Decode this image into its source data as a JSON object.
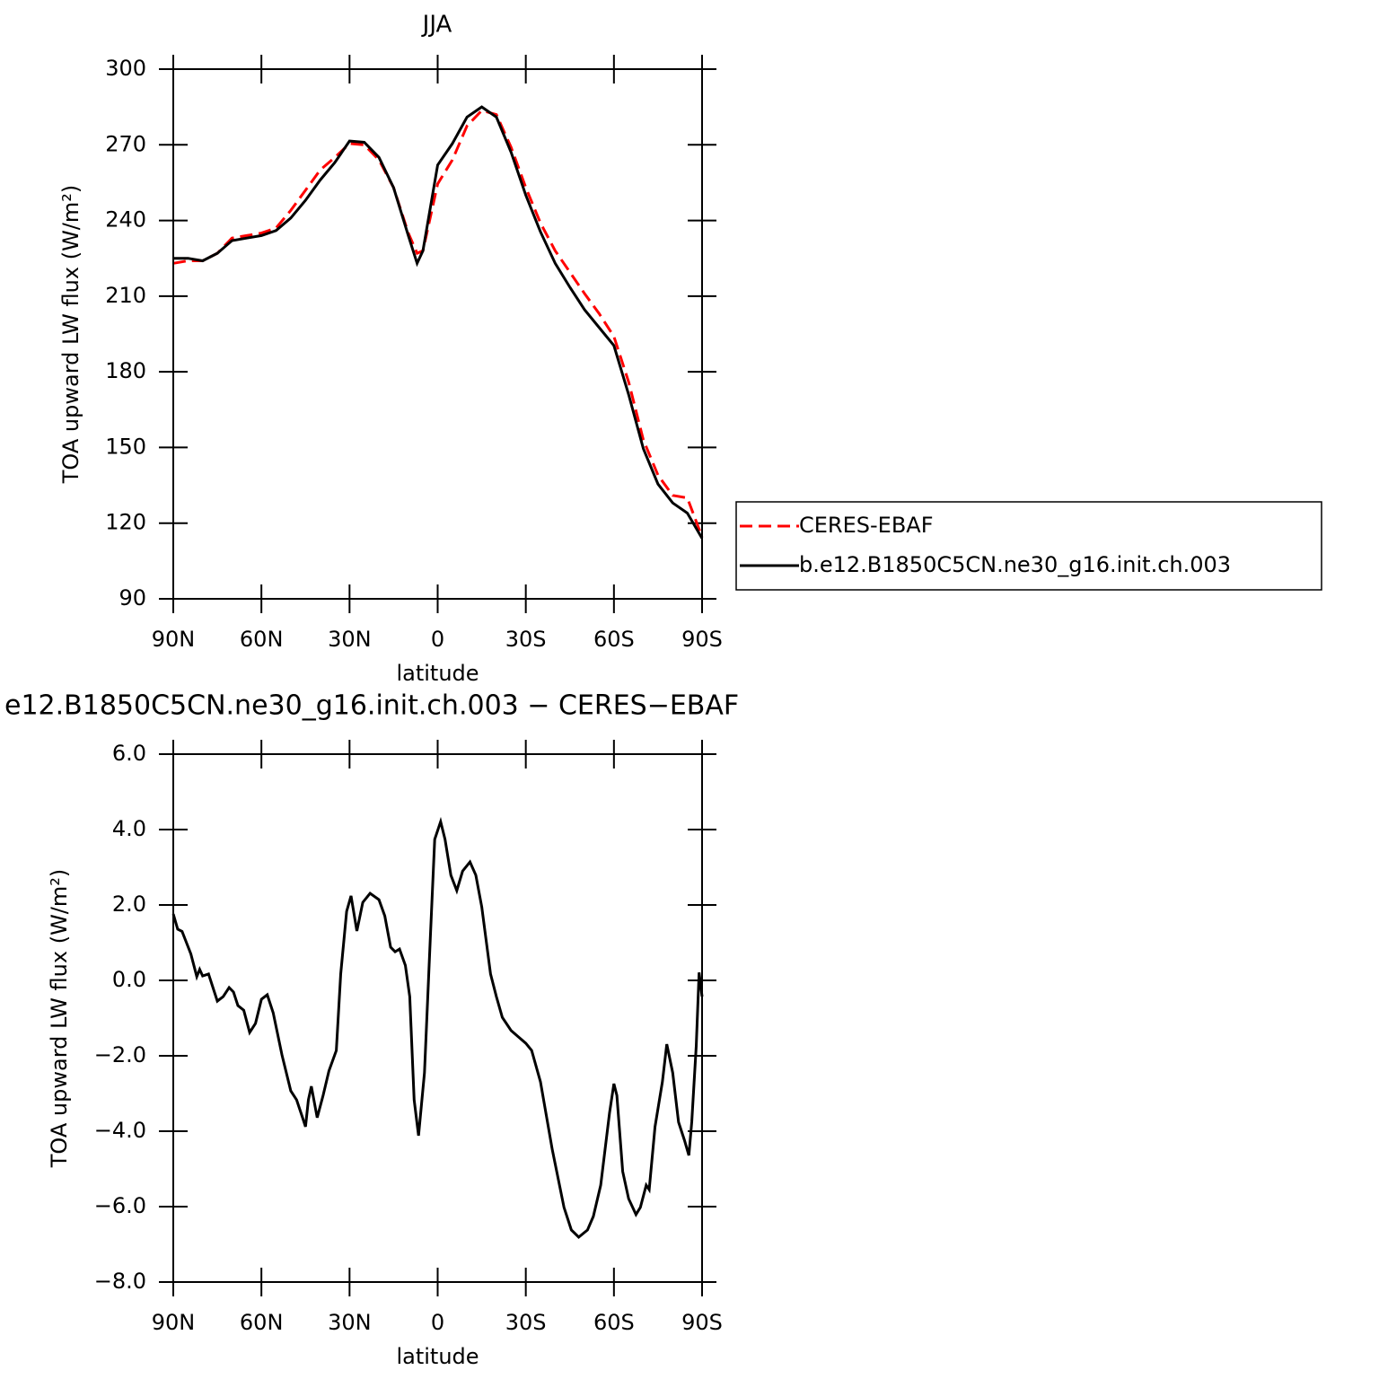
{
  "chart_data": [
    {
      "type": "line",
      "title": "JJA",
      "x_label": "latitude",
      "y_label": "TOA upward LW flux (W/m²)",
      "x": [
        90,
        85,
        80,
        75,
        70,
        65,
        60,
        55,
        50,
        45,
        40,
        35,
        30,
        25,
        20,
        15,
        10,
        7,
        5,
        0,
        -5,
        -10,
        -15,
        -20,
        -25,
        -30,
        -35,
        -40,
        -45,
        -50,
        -55,
        -60,
        -65,
        -70,
        -75,
        -80,
        -85,
        -90
      ],
      "series": [
        {
          "name": "CERES-EBAF",
          "color": "#ff0000",
          "dash": true,
          "values": [
            223,
            224,
            224,
            227,
            233,
            234,
            235,
            237,
            244,
            252,
            260,
            265,
            270.5,
            270,
            264,
            253,
            235,
            227,
            228,
            254.5,
            264,
            277.5,
            283.6,
            282,
            269,
            253,
            239,
            228,
            219.5,
            211,
            203,
            194,
            176,
            153,
            139,
            131,
            130,
            114.5
          ]
        },
        {
          "name": "b.e12.B1850C5CN.ne30_g16.init.ch.003",
          "color": "#000000",
          "dash": false,
          "values": [
            225,
            225,
            224,
            227,
            232,
            233,
            234,
            236,
            241,
            248,
            256,
            263,
            271.5,
            271,
            265,
            253,
            234,
            223,
            228,
            262,
            270.5,
            281,
            285,
            281,
            267,
            250,
            235.5,
            223,
            213.5,
            204.6,
            197.5,
            190.4,
            171,
            149.5,
            135.5,
            128,
            124,
            114
          ]
        }
      ],
      "xlim": [
        90,
        -90
      ],
      "xticks": [
        {
          "value": 90,
          "label": "90N"
        },
        {
          "value": 60,
          "label": "60N"
        },
        {
          "value": 30,
          "label": "30N"
        },
        0,
        {
          "value": -30,
          "label": "30S"
        },
        {
          "value": -60,
          "label": "60S"
        },
        {
          "value": -90,
          "label": "90S"
        }
      ],
      "ylim": [
        90,
        300
      ],
      "yticks": [
        90,
        120,
        150,
        180,
        210,
        240,
        270,
        300
      ],
      "legend": "right"
    },
    {
      "type": "line",
      "title": "e12.B1850C5CN.ne30_g16.init.ch.003 − CERES−EBAF",
      "x_label": "latitude",
      "y_label": "TOA upward LW flux (W/m²)",
      "x": [
        90,
        88.5,
        87,
        85.5,
        84,
        82,
        81,
        80,
        78,
        75,
        73,
        71,
        69.5,
        68,
        66,
        64,
        62,
        60,
        58,
        56,
        53,
        50,
        48,
        46,
        45,
        44,
        43,
        41,
        39,
        37,
        34.5,
        33,
        31,
        29.5,
        27.5,
        25.5,
        23,
        20,
        18,
        16,
        14.5,
        13,
        11,
        9.5,
        8,
        6.5,
        4.5,
        2.5,
        1,
        -1,
        -2.5,
        -4.5,
        -6.5,
        -8.5,
        -11,
        -13,
        -15,
        -18,
        -20,
        -22,
        -25,
        -27.5,
        -30,
        -32,
        -35,
        -39,
        -43,
        -45.5,
        -48,
        -51,
        -53,
        -55.5,
        -58.5,
        -60,
        -61,
        -63,
        -65,
        -67.5,
        -69,
        -71,
        -72,
        -74,
        -76.5,
        -78,
        -80,
        -82,
        -84,
        -85.5,
        -86.5,
        -88,
        -89,
        -90
      ],
      "values": [
        1.76,
        1.36,
        1.3,
        1.0,
        0.7,
        0.1,
        0.29,
        0.12,
        0.17,
        -0.55,
        -0.43,
        -0.19,
        -0.31,
        -0.67,
        -0.79,
        -1.38,
        -1.14,
        -0.5,
        -0.38,
        -0.86,
        -1.98,
        -2.93,
        -3.17,
        -3.64,
        -3.88,
        -3.17,
        -2.81,
        -3.64,
        -3.05,
        -2.4,
        -1.86,
        0.17,
        1.83,
        2.24,
        1.31,
        2.07,
        2.31,
        2.14,
        1.71,
        0.88,
        0.76,
        0.83,
        0.4,
        -0.43,
        -3.17,
        -4.12,
        -2.45,
        1.12,
        3.74,
        4.21,
        3.74,
        2.79,
        2.38,
        2.9,
        3.14,
        2.79,
        1.95,
        0.17,
        -0.43,
        -0.98,
        -1.33,
        -1.5,
        -1.67,
        -1.86,
        -2.69,
        -4.48,
        -6.02,
        -6.62,
        -6.81,
        -6.62,
        -6.26,
        -5.43,
        -3.52,
        -2.74,
        -3.05,
        -5.07,
        -5.79,
        -6.21,
        -6.02,
        -5.43,
        -5.55,
        -3.88,
        -2.69,
        -1.69,
        -2.45,
        -3.76,
        -4.24,
        -4.64,
        -3.76,
        -1.74,
        0.21,
        -0.43
      ],
      "color": "#000000",
      "xlim": [
        90,
        -90
      ],
      "xticks": [
        {
          "value": 90,
          "label": "90N"
        },
        {
          "value": 60,
          "label": "60N"
        },
        {
          "value": 30,
          "label": "30N"
        },
        0,
        {
          "value": -30,
          "label": "30S"
        },
        {
          "value": -60,
          "label": "60S"
        },
        {
          "value": -90,
          "label": "90S"
        }
      ],
      "ylim": [
        -8,
        6
      ],
      "yticks": [
        {
          "value": -8,
          "label": "−8.0"
        },
        {
          "value": -6,
          "label": "−6.0"
        },
        {
          "value": -4,
          "label": "−4.0"
        },
        {
          "value": -2,
          "label": "−2.0"
        },
        {
          "value": 0,
          "label": "0.0"
        },
        {
          "value": 2,
          "label": "2.0"
        },
        {
          "value": 4,
          "label": "4.0"
        },
        {
          "value": 6,
          "label": "6.0"
        }
      ]
    }
  ]
}
